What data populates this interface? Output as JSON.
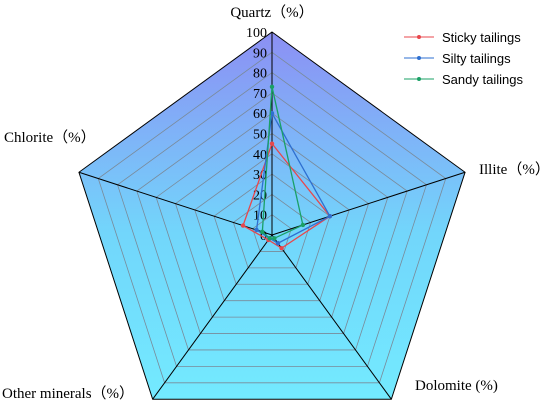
{
  "chart_data": {
    "type": "radar",
    "axes": [
      "Quartz",
      "Illite",
      "Dolomite",
      "Other minerals",
      "Chlorite"
    ],
    "axis_titles": [
      "Quartz（%）",
      "Illite（%）",
      "Dolomite (%)",
      "Other minerals（%）",
      "Chlorite（%）"
    ],
    "rlim": [
      0,
      100
    ],
    "ticks": [
      "0",
      "10",
      "20",
      "30",
      "40",
      "50",
      "60",
      "70",
      "80",
      "90",
      "100"
    ],
    "tick_values": [
      0,
      10,
      20,
      30,
      40,
      50,
      60,
      70,
      80,
      90,
      100
    ],
    "grid": true,
    "legend_position": "top-right",
    "series": [
      {
        "name": "Sticky tailings",
        "color": "#e8474c",
        "values": [
          45,
          30,
          8,
          3,
          15
        ]
      },
      {
        "name": "Silty tailings",
        "color": "#2e6fd0",
        "values": [
          60,
          30,
          5,
          2,
          8
        ]
      },
      {
        "name": "Sandy tailings",
        "color": "#1aa066",
        "values": [
          73,
          16,
          2,
          2,
          5
        ]
      }
    ],
    "colors": {
      "fill_outer": "#7fefff",
      "fill_center": "#7b9ef2",
      "grid": "#7a8a99",
      "axis": "#000000"
    }
  }
}
